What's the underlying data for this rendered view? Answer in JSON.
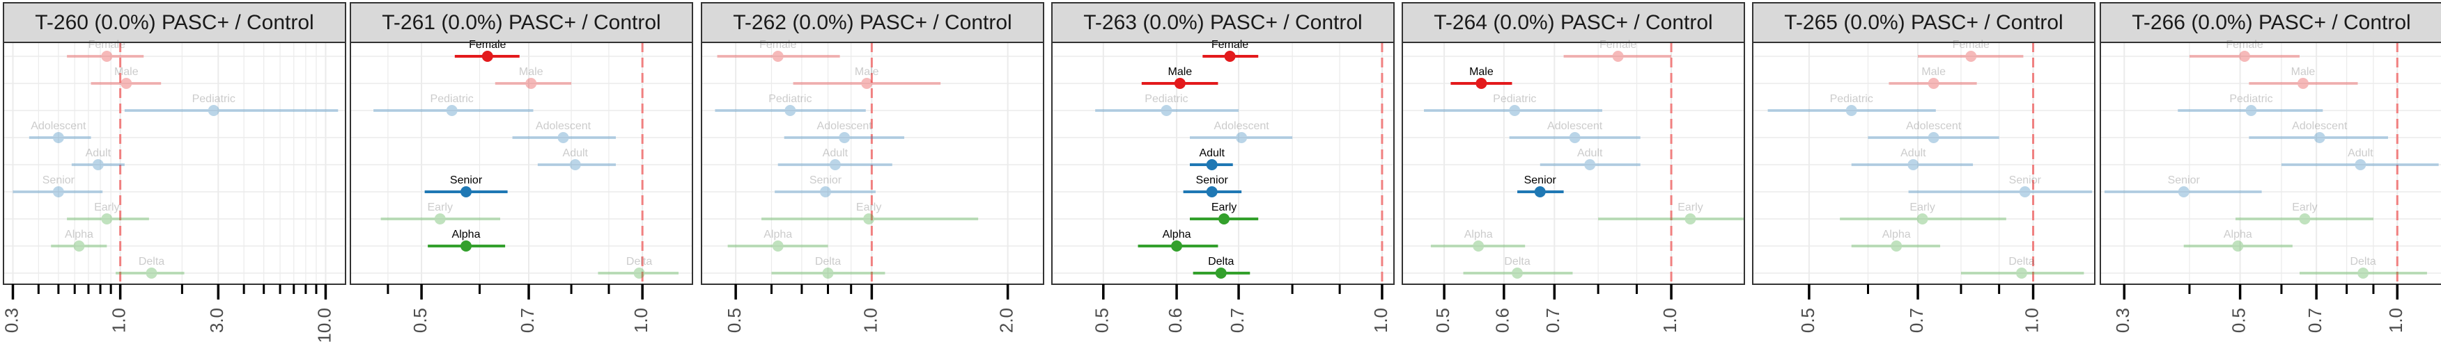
{
  "figure": {
    "background": "#ffffff",
    "strip_fill": "#d9d9d9",
    "strip_border": "#333333",
    "panel_border": "#333333",
    "grid_color": "#ebebeb",
    "reference_line_color": "#f08080",
    "group_colors": {
      "sex": "#e31a1c",
      "age": "#1f78b4",
      "variant": "#33a02c"
    },
    "faded_opacity": 0.3
  },
  "chart_data": [
    {
      "type": "forest",
      "title": "T-260 (0.0%) PASC+ / Control",
      "x_scale": "log",
      "xlim": [
        0.27,
        12.5
      ],
      "reference_line": 1.0,
      "ticks": [
        {
          "value": 0.3,
          "label": "0.3"
        },
        {
          "value": 1.0,
          "label": "1.0"
        },
        {
          "value": 3.0,
          "label": "3.0"
        },
        {
          "value": 10.0,
          "label": "10.0"
        }
      ],
      "minor_ticks": [
        0.4,
        0.5,
        0.6,
        0.7,
        0.8,
        0.9,
        2,
        4,
        5,
        6,
        7,
        8,
        9
      ],
      "rows": [
        {
          "label": "Female",
          "group": "sex",
          "estimate": 0.86,
          "low": 0.55,
          "high": 1.3,
          "significant": false
        },
        {
          "label": "Male",
          "group": "sex",
          "estimate": 1.07,
          "low": 0.72,
          "high": 1.58,
          "significant": false
        },
        {
          "label": "Pediatric",
          "group": "age",
          "estimate": 2.85,
          "low": 1.05,
          "high": 11.5,
          "significant": false
        },
        {
          "label": "Adolescent",
          "group": "age",
          "estimate": 0.5,
          "low": 0.36,
          "high": 0.72,
          "significant": false
        },
        {
          "label": "Adult",
          "group": "age",
          "estimate": 0.78,
          "low": 0.58,
          "high": 1.05,
          "significant": false
        },
        {
          "label": "Senior",
          "group": "age",
          "estimate": 0.5,
          "low": 0.3,
          "high": 0.82,
          "significant": false
        },
        {
          "label": "Early",
          "group": "variant",
          "estimate": 0.86,
          "low": 0.55,
          "high": 1.38,
          "significant": false
        },
        {
          "label": "Alpha",
          "group": "variant",
          "estimate": 0.63,
          "low": 0.46,
          "high": 0.86,
          "significant": false
        },
        {
          "label": "Delta",
          "group": "variant",
          "estimate": 1.42,
          "low": 0.95,
          "high": 2.05,
          "significant": false
        }
      ]
    },
    {
      "type": "forest",
      "title": "T-261 (0.0%) PASC+ / Control",
      "x_scale": "log",
      "xlim": [
        0.4,
        1.17
      ],
      "reference_line": 1.0,
      "ticks": [
        {
          "value": 0.5,
          "label": "0.5"
        },
        {
          "value": 0.7,
          "label": "0.7"
        },
        {
          "value": 1.0,
          "label": "1.0"
        }
      ],
      "minor_ticks": [
        0.45,
        0.6,
        0.8,
        0.9
      ],
      "rows": [
        {
          "label": "Female",
          "group": "sex",
          "estimate": 0.615,
          "low": 0.555,
          "high": 0.68,
          "significant": true
        },
        {
          "label": "Male",
          "group": "sex",
          "estimate": 0.705,
          "low": 0.63,
          "high": 0.8,
          "significant": false
        },
        {
          "label": "Pediatric",
          "group": "age",
          "estimate": 0.55,
          "low": 0.43,
          "high": 0.71,
          "significant": false
        },
        {
          "label": "Adolescent",
          "group": "age",
          "estimate": 0.78,
          "low": 0.665,
          "high": 0.92,
          "significant": false
        },
        {
          "label": "Adult",
          "group": "age",
          "estimate": 0.81,
          "low": 0.72,
          "high": 0.92,
          "significant": false
        },
        {
          "label": "Senior",
          "group": "age",
          "estimate": 0.575,
          "low": 0.505,
          "high": 0.655,
          "significant": true
        },
        {
          "label": "Early",
          "group": "variant",
          "estimate": 0.53,
          "low": 0.44,
          "high": 0.64,
          "significant": false
        },
        {
          "label": "Alpha",
          "group": "variant",
          "estimate": 0.575,
          "low": 0.51,
          "high": 0.65,
          "significant": true
        },
        {
          "label": "Delta",
          "group": "variant",
          "estimate": 0.99,
          "low": 0.87,
          "high": 1.12,
          "significant": false
        }
      ]
    },
    {
      "type": "forest",
      "title": "T-262 (0.0%) PASC+ / Control",
      "x_scale": "log",
      "xlim": [
        0.42,
        2.4
      ],
      "reference_line": 1.0,
      "ticks": [
        {
          "value": 0.5,
          "label": "0.5"
        },
        {
          "value": 1.0,
          "label": "1.0"
        },
        {
          "value": 2.0,
          "label": "2.0"
        }
      ],
      "minor_ticks": [
        0.6,
        0.7,
        0.8,
        0.9
      ],
      "rows": [
        {
          "label": "Female",
          "group": "sex",
          "estimate": 0.62,
          "low": 0.455,
          "high": 0.85,
          "significant": false
        },
        {
          "label": "Male",
          "group": "sex",
          "estimate": 0.975,
          "low": 0.67,
          "high": 1.42,
          "significant": false
        },
        {
          "label": "Pediatric",
          "group": "age",
          "estimate": 0.66,
          "low": 0.45,
          "high": 0.97,
          "significant": false
        },
        {
          "label": "Adolescent",
          "group": "age",
          "estimate": 0.87,
          "low": 0.64,
          "high": 1.18,
          "significant": false
        },
        {
          "label": "Adult",
          "group": "age",
          "estimate": 0.83,
          "low": 0.62,
          "high": 1.11,
          "significant": false
        },
        {
          "label": "Senior",
          "group": "age",
          "estimate": 0.79,
          "low": 0.61,
          "high": 1.02,
          "significant": false
        },
        {
          "label": "Early",
          "group": "variant",
          "estimate": 0.985,
          "low": 0.57,
          "high": 1.72,
          "significant": false
        },
        {
          "label": "Alpha",
          "group": "variant",
          "estimate": 0.62,
          "low": 0.48,
          "high": 0.8,
          "significant": false
        },
        {
          "label": "Delta",
          "group": "variant",
          "estimate": 0.8,
          "low": 0.6,
          "high": 1.07,
          "significant": false
        }
      ]
    },
    {
      "type": "forest",
      "title": "T-263 (0.0%) PASC+ / Control",
      "x_scale": "log",
      "xlim": [
        0.44,
        1.03
      ],
      "reference_line": 1.0,
      "ticks": [
        {
          "value": 0.5,
          "label": "0.5"
        },
        {
          "value": 0.6,
          "label": "0.6"
        },
        {
          "value": 0.7,
          "label": "0.7"
        },
        {
          "value": 1.0,
          "label": "1.0"
        }
      ],
      "minor_ticks": [
        0.8,
        0.9
      ],
      "rows": [
        {
          "label": "Female",
          "group": "sex",
          "estimate": 0.685,
          "low": 0.64,
          "high": 0.735,
          "significant": true
        },
        {
          "label": "Male",
          "group": "sex",
          "estimate": 0.605,
          "low": 0.55,
          "high": 0.665,
          "significant": true
        },
        {
          "label": "Pediatric",
          "group": "age",
          "estimate": 0.585,
          "low": 0.49,
          "high": 0.7,
          "significant": false
        },
        {
          "label": "Adolescent",
          "group": "age",
          "estimate": 0.705,
          "low": 0.62,
          "high": 0.8,
          "significant": false
        },
        {
          "label": "Adult",
          "group": "age",
          "estimate": 0.655,
          "low": 0.62,
          "high": 0.69,
          "significant": true
        },
        {
          "label": "Senior",
          "group": "age",
          "estimate": 0.655,
          "low": 0.61,
          "high": 0.705,
          "significant": true
        },
        {
          "label": "Early",
          "group": "variant",
          "estimate": 0.675,
          "low": 0.62,
          "high": 0.735,
          "significant": true
        },
        {
          "label": "Alpha",
          "group": "variant",
          "estimate": 0.6,
          "low": 0.545,
          "high": 0.665,
          "significant": true
        },
        {
          "label": "Delta",
          "group": "variant",
          "estimate": 0.67,
          "low": 0.625,
          "high": 0.72,
          "significant": true
        }
      ]
    },
    {
      "type": "forest",
      "title": "T-264 (0.0%) PASC+ / Control",
      "x_scale": "log",
      "xlim": [
        0.44,
        1.25
      ],
      "reference_line": 1.0,
      "ticks": [
        {
          "value": 0.5,
          "label": "0.5"
        },
        {
          "value": 0.6,
          "label": "0.6"
        },
        {
          "value": 0.7,
          "label": "0.7"
        },
        {
          "value": 1.0,
          "label": "1.0"
        }
      ],
      "minor_ticks": [
        0.8,
        0.9
      ],
      "rows": [
        {
          "label": "Female",
          "group": "sex",
          "estimate": 0.85,
          "low": 0.72,
          "high": 1.0,
          "significant": false
        },
        {
          "label": "Male",
          "group": "sex",
          "estimate": 0.56,
          "low": 0.51,
          "high": 0.615,
          "significant": true
        },
        {
          "label": "Pediatric",
          "group": "age",
          "estimate": 0.62,
          "low": 0.47,
          "high": 0.81,
          "significant": false
        },
        {
          "label": "Adolescent",
          "group": "age",
          "estimate": 0.745,
          "low": 0.61,
          "high": 0.91,
          "significant": false
        },
        {
          "label": "Adult",
          "group": "age",
          "estimate": 0.78,
          "low": 0.67,
          "high": 0.91,
          "significant": false
        },
        {
          "label": "Senior",
          "group": "age",
          "estimate": 0.67,
          "low": 0.625,
          "high": 0.72,
          "significant": true
        },
        {
          "label": "Early",
          "group": "variant",
          "estimate": 1.06,
          "low": 0.8,
          "high": 1.4,
          "significant": false
        },
        {
          "label": "Alpha",
          "group": "variant",
          "estimate": 0.555,
          "low": 0.48,
          "high": 0.64,
          "significant": false
        },
        {
          "label": "Delta",
          "group": "variant",
          "estimate": 0.625,
          "low": 0.53,
          "high": 0.74,
          "significant": false
        }
      ]
    },
    {
      "type": "forest",
      "title": "T-265 (0.0%) PASC+ / Control",
      "x_scale": "log",
      "xlim": [
        0.42,
        1.21
      ],
      "reference_line": 1.0,
      "ticks": [
        {
          "value": 0.5,
          "label": "0.5"
        },
        {
          "value": 0.7,
          "label": "0.7"
        },
        {
          "value": 1.0,
          "label": "1.0"
        }
      ],
      "minor_ticks": [
        0.6,
        0.8,
        0.9
      ],
      "rows": [
        {
          "label": "Female",
          "group": "sex",
          "estimate": 0.825,
          "low": 0.7,
          "high": 0.97,
          "significant": false
        },
        {
          "label": "Male",
          "group": "sex",
          "estimate": 0.735,
          "low": 0.64,
          "high": 0.84,
          "significant": false
        },
        {
          "label": "Pediatric",
          "group": "age",
          "estimate": 0.57,
          "low": 0.44,
          "high": 0.74,
          "significant": false
        },
        {
          "label": "Adolescent",
          "group": "age",
          "estimate": 0.735,
          "low": 0.6,
          "high": 0.9,
          "significant": false
        },
        {
          "label": "Adult",
          "group": "age",
          "estimate": 0.69,
          "low": 0.57,
          "high": 0.83,
          "significant": false
        },
        {
          "label": "Senior",
          "group": "age",
          "estimate": 0.975,
          "low": 0.68,
          "high": 1.2,
          "significant": false
        },
        {
          "label": "Early",
          "group": "variant",
          "estimate": 0.71,
          "low": 0.55,
          "high": 0.92,
          "significant": false
        },
        {
          "label": "Alpha",
          "group": "variant",
          "estimate": 0.655,
          "low": 0.57,
          "high": 0.75,
          "significant": false
        },
        {
          "label": "Delta",
          "group": "variant",
          "estimate": 0.965,
          "low": 0.8,
          "high": 1.17,
          "significant": false
        }
      ]
    },
    {
      "type": "forest",
      "title": "T-266 (0.0%) PASC+ / Control",
      "x_scale": "log",
      "xlim": [
        0.27,
        1.22
      ],
      "reference_line": 1.0,
      "ticks": [
        {
          "value": 0.3,
          "label": "0.3"
        },
        {
          "value": 0.5,
          "label": "0.5"
        },
        {
          "value": 0.7,
          "label": "0.7"
        },
        {
          "value": 1.0,
          "label": "1.0"
        }
      ],
      "minor_ticks": [
        0.4,
        0.6,
        0.8,
        0.9
      ],
      "rows": [
        {
          "label": "Female",
          "group": "sex",
          "estimate": 0.51,
          "low": 0.4,
          "high": 0.65,
          "significant": false
        },
        {
          "label": "Male",
          "group": "sex",
          "estimate": 0.66,
          "low": 0.52,
          "high": 0.84,
          "significant": false
        },
        {
          "label": "Pediatric",
          "group": "age",
          "estimate": 0.525,
          "low": 0.38,
          "high": 0.72,
          "significant": false
        },
        {
          "label": "Adolescent",
          "group": "age",
          "estimate": 0.71,
          "low": 0.52,
          "high": 0.96,
          "significant": false
        },
        {
          "label": "Adult",
          "group": "age",
          "estimate": 0.85,
          "low": 0.6,
          "high": 1.2,
          "significant": false
        },
        {
          "label": "Senior",
          "group": "age",
          "estimate": 0.39,
          "low": 0.275,
          "high": 0.55,
          "significant": false
        },
        {
          "label": "Early",
          "group": "variant",
          "estimate": 0.665,
          "low": 0.49,
          "high": 0.9,
          "significant": false
        },
        {
          "label": "Alpha",
          "group": "variant",
          "estimate": 0.495,
          "low": 0.39,
          "high": 0.63,
          "significant": false
        },
        {
          "label": "Delta",
          "group": "variant",
          "estimate": 0.86,
          "low": 0.65,
          "high": 1.14,
          "significant": false
        }
      ]
    }
  ]
}
